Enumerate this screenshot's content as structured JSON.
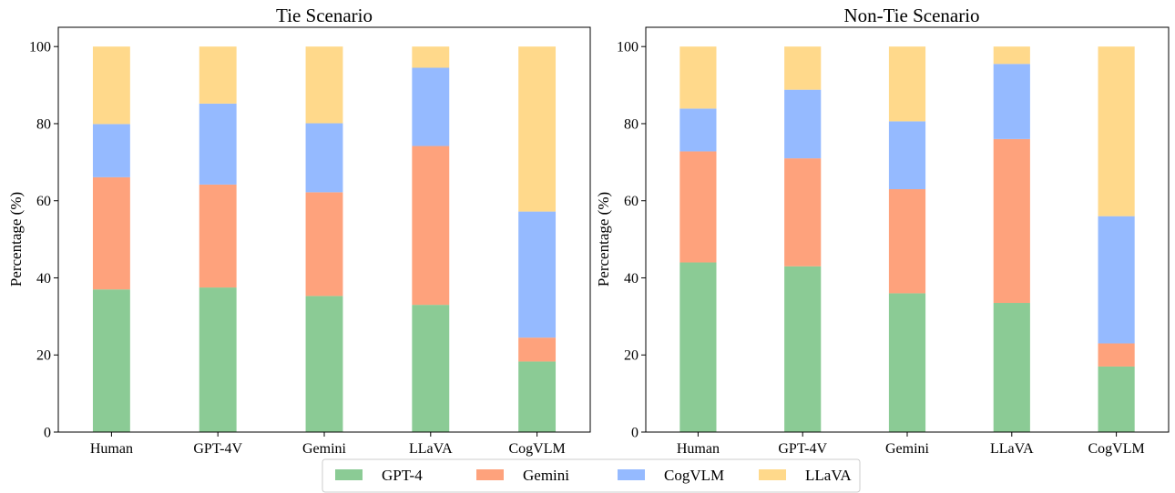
{
  "colors": {
    "GPT-4": "#8bcb95",
    "Gemini": "#fea27c",
    "CogVLM": "#95baff",
    "LLaVA": "#ffd98b"
  },
  "legend": {
    "items": [
      "GPT-4",
      "Gemini",
      "CogVLM",
      "LLaVA"
    ],
    "placement": "bottom-center"
  },
  "chart_data": [
    {
      "type": "bar",
      "stacked": true,
      "title": "Tie Scenario",
      "xlabel": "",
      "ylabel": "Percentage (%)",
      "ylim": [
        0,
        105
      ],
      "yticks": [
        0,
        20,
        40,
        60,
        80,
        100
      ],
      "grid": false,
      "categories": [
        "Human",
        "GPT-4V",
        "Gemini",
        "LLaVA",
        "CogVLM"
      ],
      "series": [
        {
          "name": "GPT-4",
          "values": [
            37.0,
            37.5,
            35.3,
            33.0,
            18.3
          ]
        },
        {
          "name": "Gemini",
          "values": [
            29.1,
            26.7,
            26.9,
            41.2,
            6.2
          ]
        },
        {
          "name": "CogVLM",
          "values": [
            13.8,
            21.0,
            17.9,
            20.3,
            32.7
          ]
        },
        {
          "name": "LLaVA",
          "values": [
            20.1,
            14.8,
            19.9,
            5.5,
            42.8
          ]
        }
      ]
    },
    {
      "type": "bar",
      "stacked": true,
      "title": "Non-Tie Scenario",
      "xlabel": "",
      "ylabel": "Percentage (%)",
      "ylim": [
        0,
        105
      ],
      "yticks": [
        0,
        20,
        40,
        60,
        80,
        100
      ],
      "grid": false,
      "categories": [
        "Human",
        "GPT-4V",
        "Gemini",
        "LLaVA",
        "CogVLM"
      ],
      "series": [
        {
          "name": "GPT-4",
          "values": [
            44.0,
            43.0,
            36.0,
            33.5,
            17.0
          ]
        },
        {
          "name": "Gemini",
          "values": [
            28.8,
            28.0,
            27.0,
            42.5,
            6.0
          ]
        },
        {
          "name": "CogVLM",
          "values": [
            11.1,
            17.8,
            17.6,
            19.5,
            33.0
          ]
        },
        {
          "name": "LLaVA",
          "values": [
            16.1,
            11.2,
            19.4,
            4.5,
            44.0
          ]
        }
      ]
    }
  ]
}
